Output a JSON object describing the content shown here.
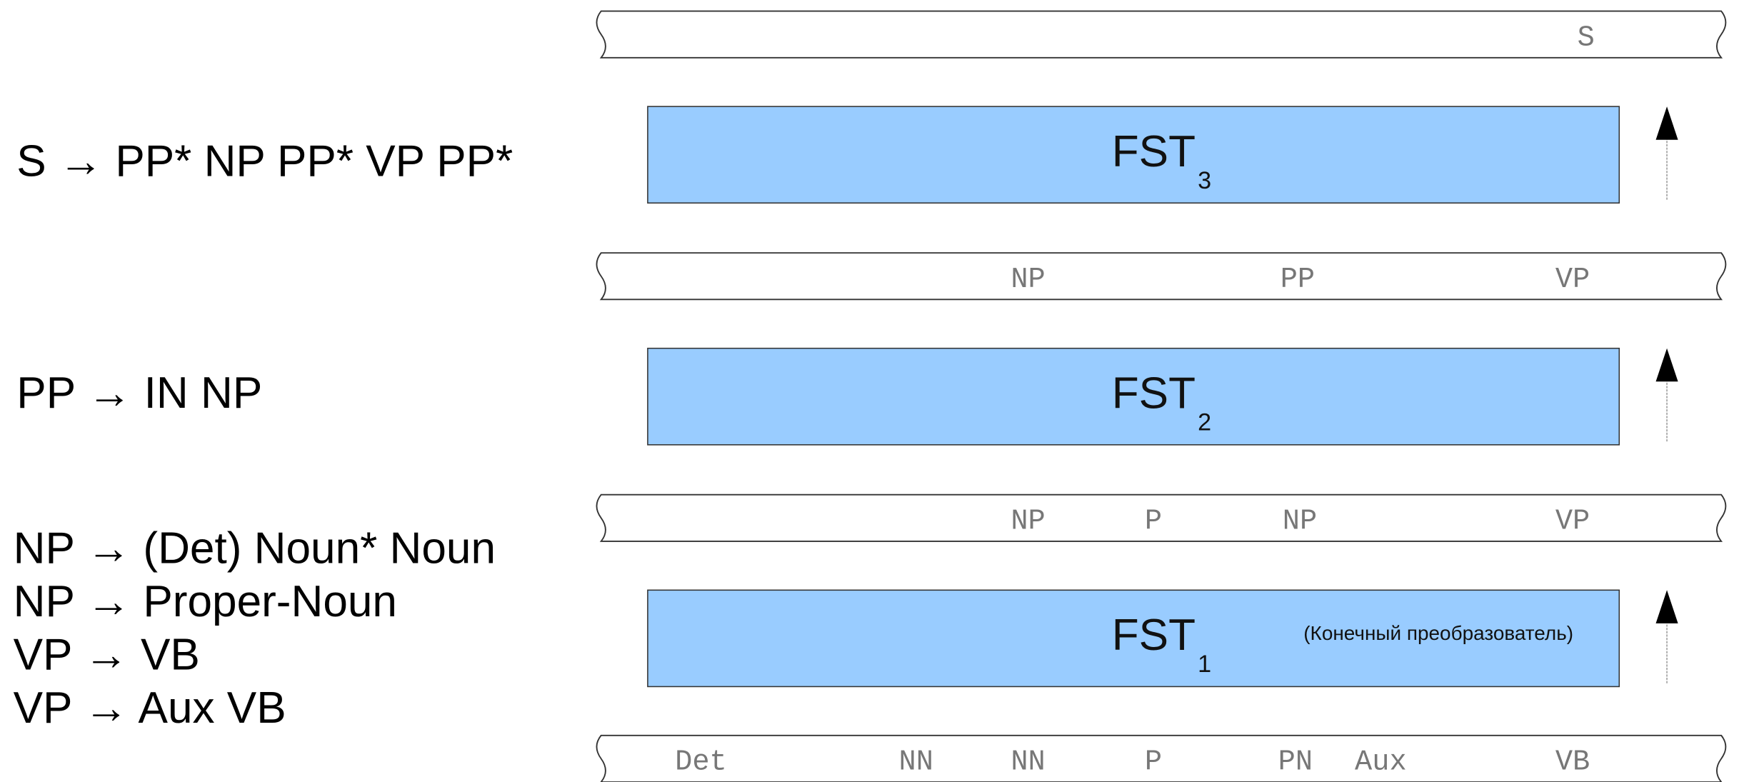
{
  "rules": [
    "S → PP* NP PP* VP PP*",
    "PP → IN NP",
    "NP → (Det) Noun* Noun",
    "NP → Proper-Noun",
    "VP → VB",
    "VP → Aux VB"
  ],
  "tapes": [
    {
      "tokens": [
        "S"
      ]
    },
    {
      "tokens": [
        "NP",
        "PP",
        "VP"
      ]
    },
    {
      "tokens": [
        "NP",
        "P",
        "NP",
        "VP"
      ]
    },
    {
      "tokens": [
        "Det",
        "NN",
        "NN",
        "P",
        "PN",
        "Aux",
        "VB"
      ]
    }
  ],
  "fsts": [
    {
      "label": "FST",
      "subscript": "3"
    },
    {
      "label": "FST",
      "subscript": "2"
    },
    {
      "label": "FST",
      "subscript": "1",
      "note": "(Конечный преобразователь)"
    }
  ]
}
